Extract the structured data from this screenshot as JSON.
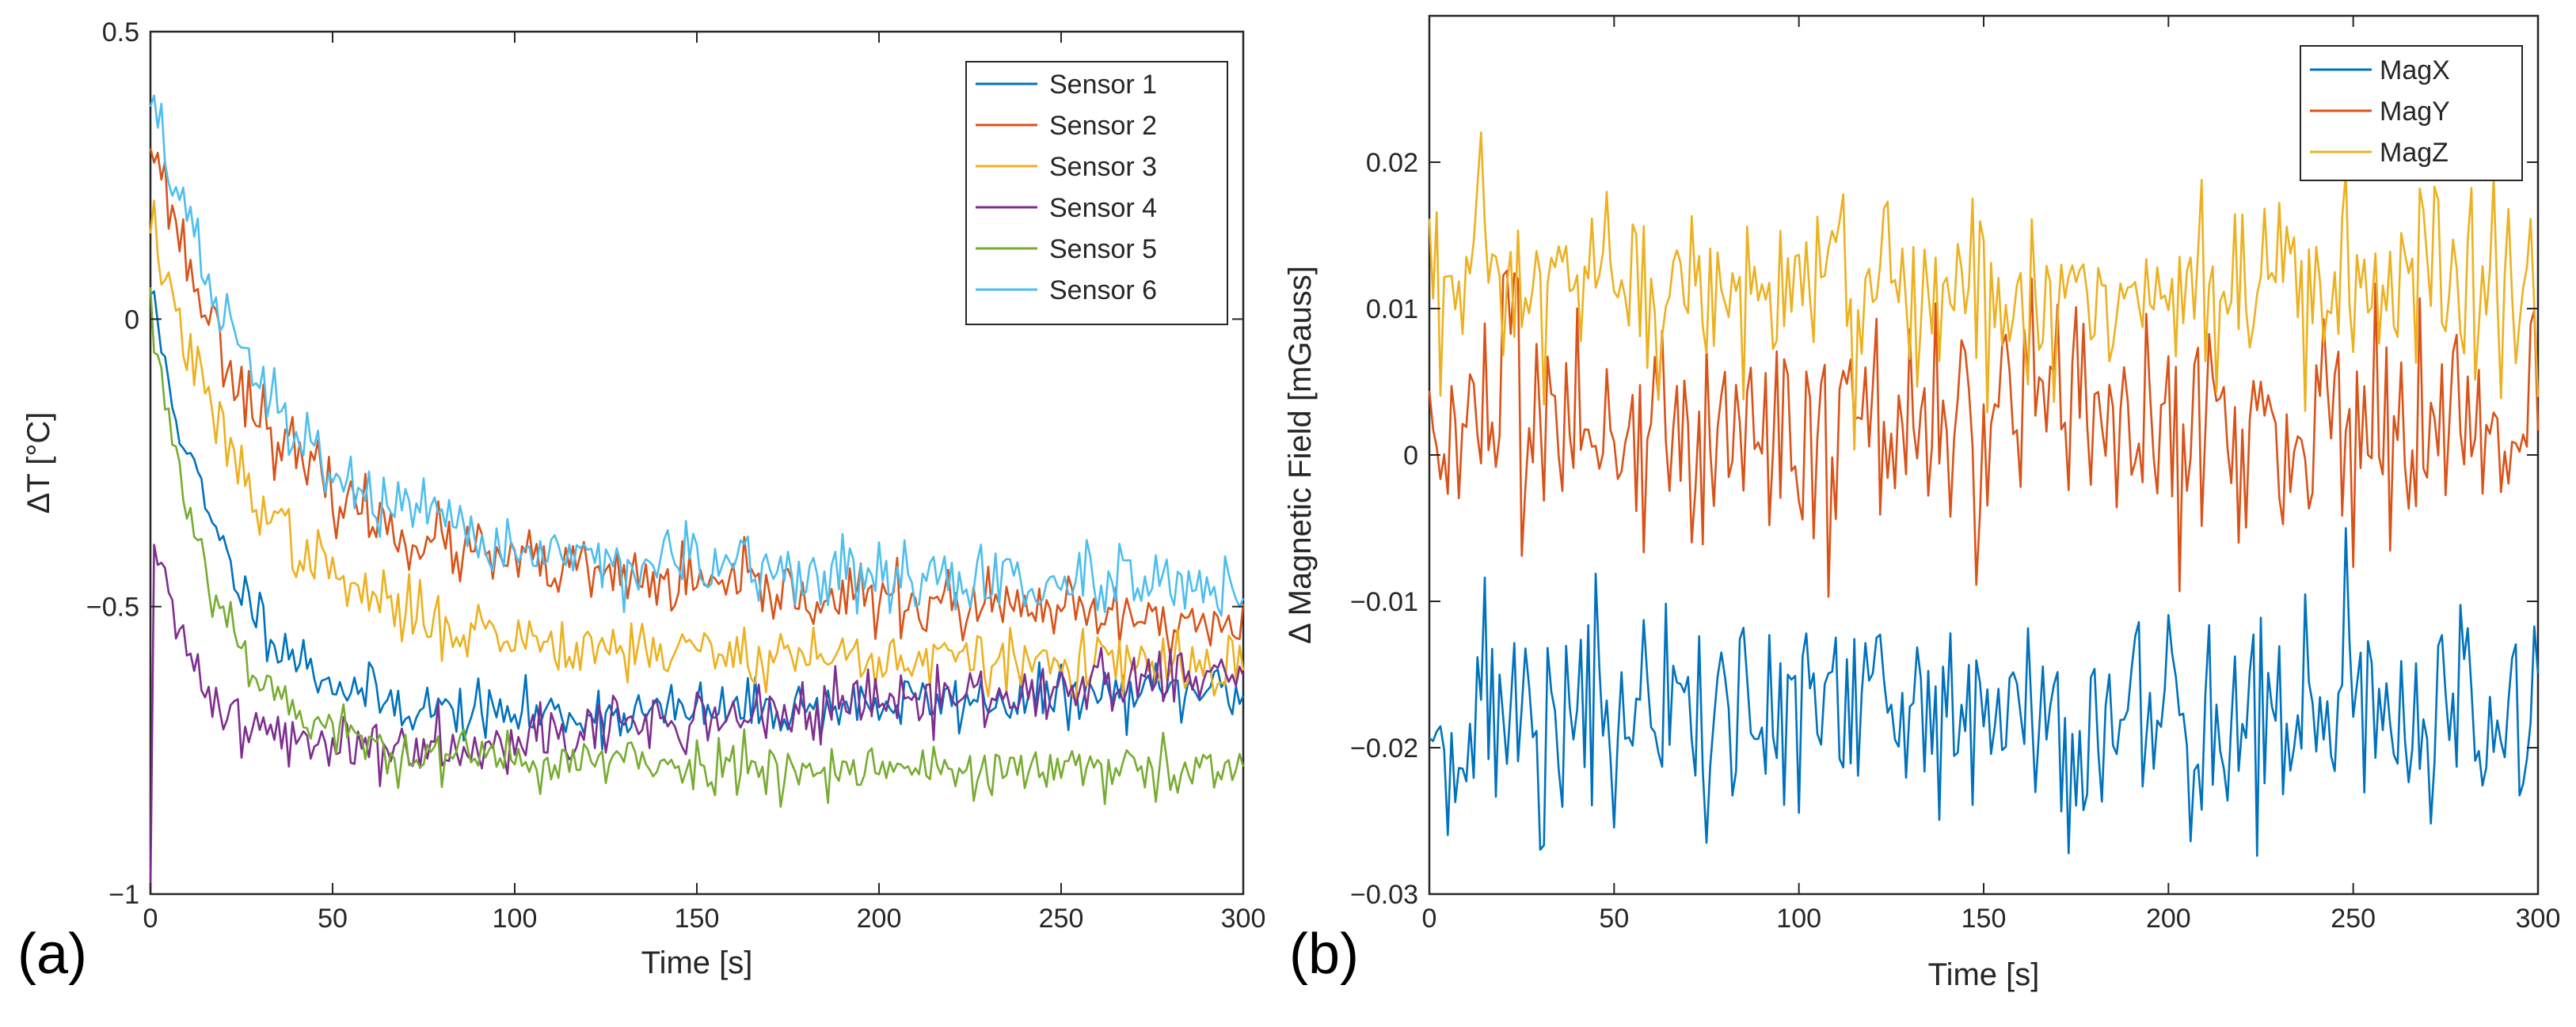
{
  "chart_data": [
    {
      "type": "line",
      "panel_label": "(a)",
      "title": "",
      "xlabel": "Time [s]",
      "ylabel": "ΔT [°C]",
      "xlim": [
        0,
        300
      ],
      "ylim": [
        -1,
        0.5
      ],
      "xticks": [
        0,
        50,
        100,
        150,
        200,
        250,
        300
      ],
      "xtick_labels": [
        "0",
        "50",
        "100",
        "150",
        "200",
        "250",
        "300"
      ],
      "yticks": [
        -1,
        -0.5,
        0,
        0.5
      ],
      "ytick_labels": [
        "−1",
        "−0.5",
        "0",
        "0.5"
      ],
      "legend_position": "top-right",
      "grid": false,
      "series": [
        {
          "name": "Sensor 1",
          "color": "#0072BD",
          "start": 0.05,
          "end": -0.72,
          "tau": 22,
          "drift": 0.00025,
          "noise": 0.025,
          "seed": 11
        },
        {
          "name": "Sensor 2",
          "color": "#D95319",
          "start": 0.33,
          "end": -0.4,
          "tau": 28,
          "drift": -0.00045,
          "noise": 0.03,
          "seed": 23
        },
        {
          "name": "Sensor 3",
          "color": "#EDB120",
          "start": 0.18,
          "end": -0.55,
          "tau": 27,
          "drift": -0.0002,
          "noise": 0.028,
          "seed": 37
        },
        {
          "name": "Sensor 4",
          "color": "#7E2F8E",
          "start": -0.37,
          "end": -0.78,
          "tau": 14,
          "drift": 0.00055,
          "noise": 0.028,
          "seed": 41
        },
        {
          "name": "Sensor 5",
          "color": "#77AC30",
          "start": 0.02,
          "end": -0.76,
          "tau": 18,
          "drift": -0.0001,
          "noise": 0.025,
          "seed": 53
        },
        {
          "name": "Sensor 6",
          "color": "#4DBEEE",
          "start": 0.4,
          "end": -0.4,
          "tau": 30,
          "drift": -0.00025,
          "noise": 0.03,
          "seed": 67
        }
      ]
    },
    {
      "type": "line",
      "panel_label": "(b)",
      "title": "",
      "xlabel": "Time [s]",
      "ylabel": "Δ Magnetic Field [mGauss]",
      "xlim": [
        0,
        300
      ],
      "ylim": [
        -0.03,
        0.03
      ],
      "xticks": [
        0,
        50,
        100,
        150,
        200,
        250,
        300
      ],
      "xtick_labels": [
        "0",
        "50",
        "100",
        "150",
        "200",
        "250",
        "300"
      ],
      "yticks": [
        -0.03,
        -0.02,
        -0.01,
        0,
        0.01,
        0.02
      ],
      "ytick_labels": [
        "−0.03",
        "−0.02",
        "−0.01",
        "0",
        "0.01",
        "0.02"
      ],
      "legend_position": "top-right",
      "grid": false,
      "series": [
        {
          "name": "MagX",
          "color": "#0072BD",
          "mean": -0.018,
          "noise": 0.0042,
          "seed": 71
        },
        {
          "name": "MagY",
          "color": "#D95319",
          "mean": 0.002,
          "noise": 0.0042,
          "seed": 83
        },
        {
          "name": "MagZ",
          "color": "#EDB120",
          "mean": 0.011,
          "noise": 0.0036,
          "seed": 97
        }
      ]
    }
  ]
}
